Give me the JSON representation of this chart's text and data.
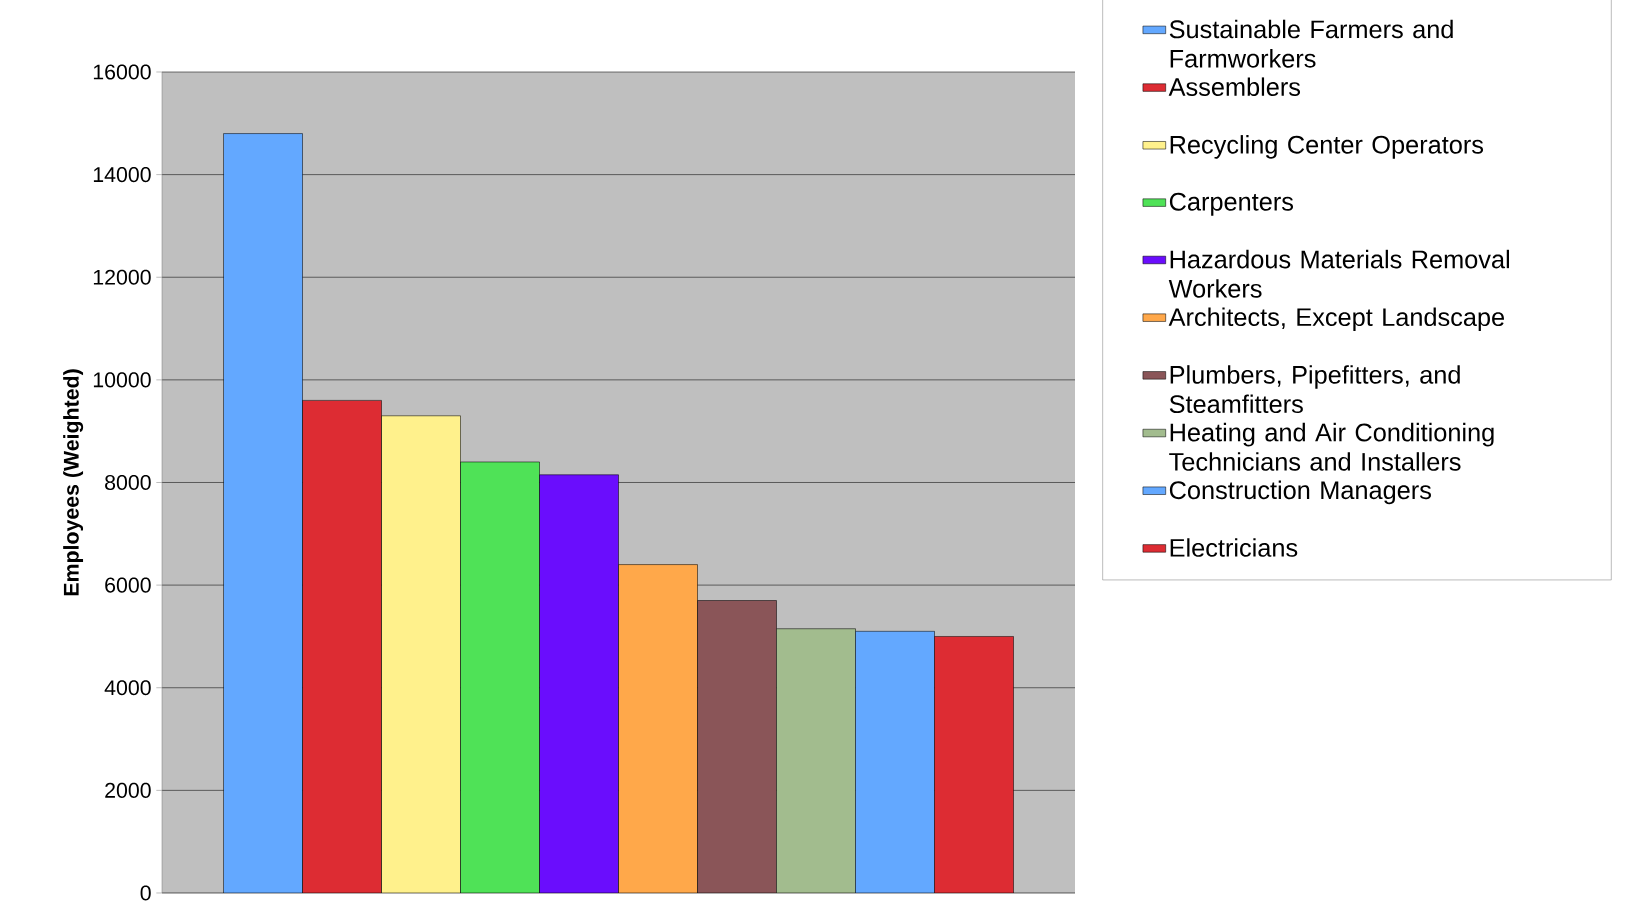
{
  "chart_data": {
    "type": "bar",
    "ylabel": "Employees (Weighted)",
    "categories": [
      null
    ],
    "series": [
      {
        "name": "Sustainable Farmers and Farmworkers",
        "color": "#63a8ff",
        "values": [
          14800
        ]
      },
      {
        "name": "Assemblers",
        "color": "#dd2c33",
        "values": [
          9600
        ]
      },
      {
        "name": "Recycling Center Operators",
        "color": "#fff18c",
        "values": [
          9300
        ]
      },
      {
        "name": "Carpenters",
        "color": "#4fe257",
        "values": [
          8400
        ]
      },
      {
        "name": "Hazardous Materials Removal Workers",
        "color": "#6a0dfd",
        "values": [
          8150
        ]
      },
      {
        "name": "Architects, Except Landscape",
        "color": "#ffa84a",
        "values": [
          6400
        ]
      },
      {
        "name": "Plumbers, Pipefitters, and Steamfitters",
        "color": "#8a5558",
        "values": [
          5700
        ]
      },
      {
        "name": "Heating and Air Conditioning Technicians and Installers",
        "color": "#a2bc8e",
        "values": [
          5150
        ]
      },
      {
        "name": "Construction Managers",
        "color": "#63a8ff",
        "values": [
          5100
        ]
      },
      {
        "name": "Electricians",
        "color": "#dd2c33",
        "values": [
          5000
        ]
      }
    ],
    "ylim": [
      0,
      16000
    ],
    "yticks": [
      0,
      2000,
      4000,
      6000,
      8000,
      10000,
      12000,
      14000,
      16000
    ],
    "grid": "y",
    "legend": "right"
  }
}
